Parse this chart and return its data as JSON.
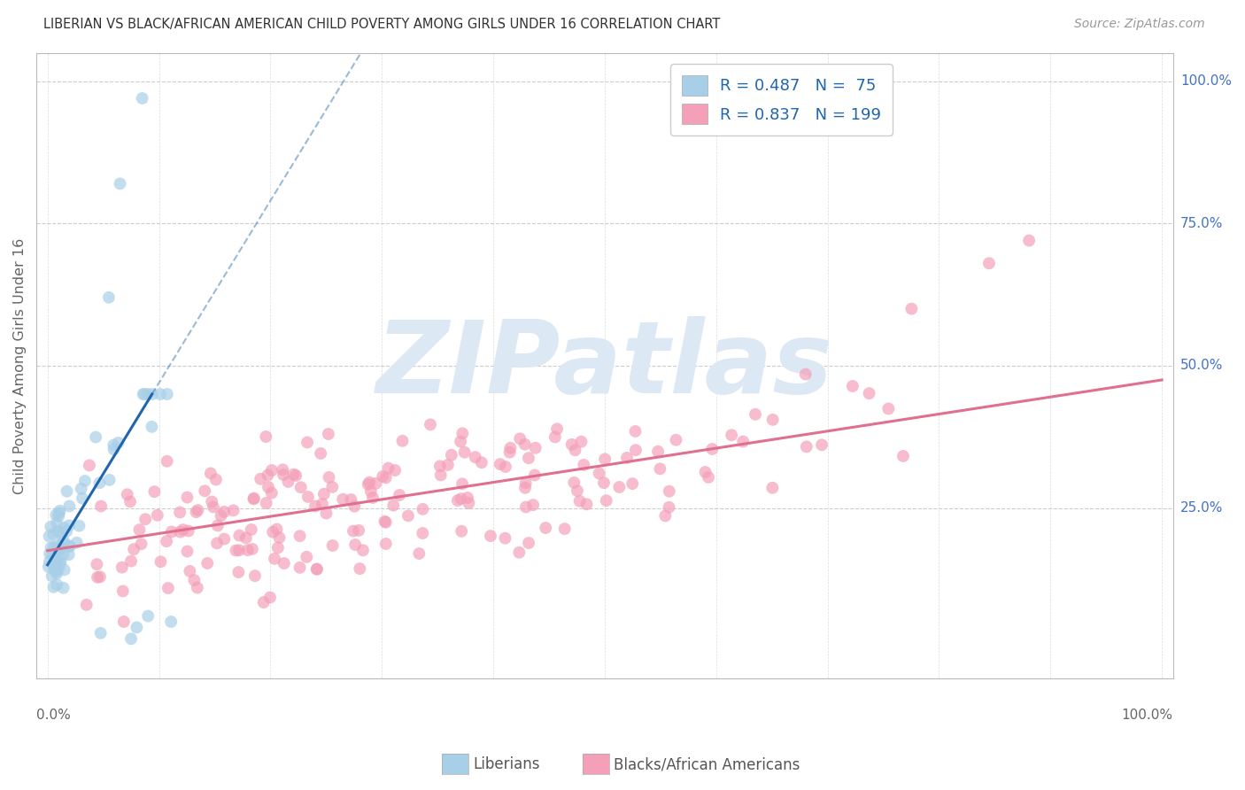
{
  "title": "LIBERIAN VS BLACK/AFRICAN AMERICAN CHILD POVERTY AMONG GIRLS UNDER 16 CORRELATION CHART",
  "source": "Source: ZipAtlas.com",
  "ylabel": "Child Poverty Among Girls Under 16",
  "liberian_R": 0.487,
  "liberian_N": 75,
  "black_R": 0.837,
  "black_N": 199,
  "liberian_color": "#a8cfe8",
  "black_color": "#f4a0b8",
  "liberian_line_color": "#2166ac",
  "black_line_color": "#e07090",
  "watermark_color": "#dce9f5",
  "background_color": "#ffffff",
  "grid_color": "#cccccc",
  "right_label_color": "#4472c4",
  "title_color": "#333333",
  "source_color": "#999999",
  "axis_label_color": "#666666",
  "legend_text_color": "#2166ac",
  "y_ticks": [
    0.25,
    0.5,
    0.75,
    1.0
  ],
  "y_tick_labels": [
    "25.0%",
    "50.0%",
    "75.0%",
    "100.0%"
  ],
  "lib_line_slope": 3.2,
  "lib_line_intercept": 0.15,
  "black_line_slope": 0.3,
  "black_line_intercept": 0.175
}
